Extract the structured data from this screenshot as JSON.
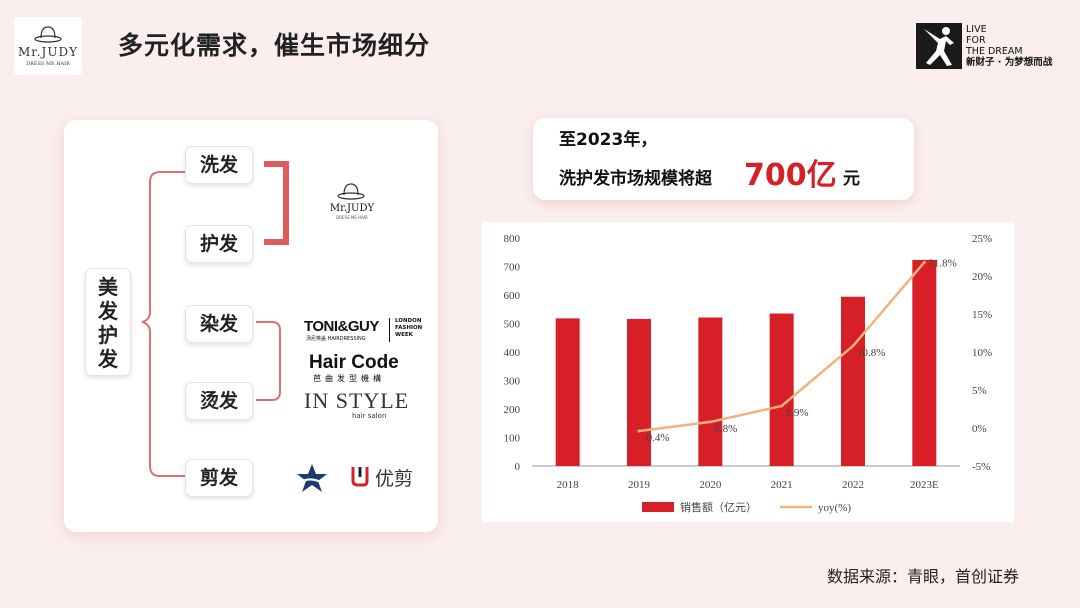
{
  "header": {
    "title": "多元化需求，催生市场细分",
    "logo_text": "Mr.JUDY",
    "logo_sub": "DRESS ME HAIR",
    "brand_lines": [
      "LIVE",
      "FOR",
      "THE DREAM",
      "新财子 · 为梦想而战"
    ]
  },
  "left_panel": {
    "main_label": "美发护发",
    "items": [
      "洗发",
      "护发",
      "染发",
      "烫发",
      "剪发"
    ],
    "brands": {
      "mrjudy": "Mr.JUDY",
      "mrjudy_sub": "DRESS ME HAIR",
      "toni": "TONI&GUY",
      "toni_sub": "汤尼英盖 HAIRDRESSING",
      "toni_tag": [
        "LONDON",
        "FASHION",
        "WEEK"
      ],
      "haircode": "Hair Code",
      "haircode_sub": "芭曲发型機構",
      "instyle": "IN STYLE",
      "instyle_sub": "hair salon",
      "youjian": "优剪"
    }
  },
  "stat": {
    "line1": "至2023年，",
    "line2": "洗护发市场规模将超",
    "value": "700亿",
    "unit": "元"
  },
  "chart_data": {
    "type": "bar+line",
    "categories": [
      "2018",
      "2019",
      "2020",
      "2021",
      "2022",
      "2023E"
    ],
    "series": [
      {
        "name": "销售额（亿元）",
        "type": "bar",
        "axis": "left",
        "values": [
          518,
          516,
          521,
          535,
          594,
          723
        ]
      },
      {
        "name": "yoy(%)",
        "type": "line",
        "axis": "right",
        "values": [
          null,
          -0.4,
          0.8,
          2.9,
          10.8,
          21.8
        ]
      }
    ],
    "line_labels": [
      "",
      "-0.4%",
      "0.8%",
      "2.9%",
      "10.8%",
      "21.8%"
    ],
    "y_left": {
      "min": 0,
      "max": 800,
      "ticks": [
        "0",
        "100",
        "200",
        "300",
        "400",
        "500",
        "600",
        "700",
        "800"
      ]
    },
    "y_right": {
      "min": -5,
      "max": 25,
      "ticks": [
        "-5%",
        "0%",
        "5%",
        "10%",
        "15%",
        "20%",
        "25%"
      ]
    },
    "legend_position": "bottom",
    "colors": {
      "bar": "#d61f26",
      "line": "#f2b27b"
    }
  },
  "footer": {
    "source": "数据来源：青眼，首创证券"
  }
}
